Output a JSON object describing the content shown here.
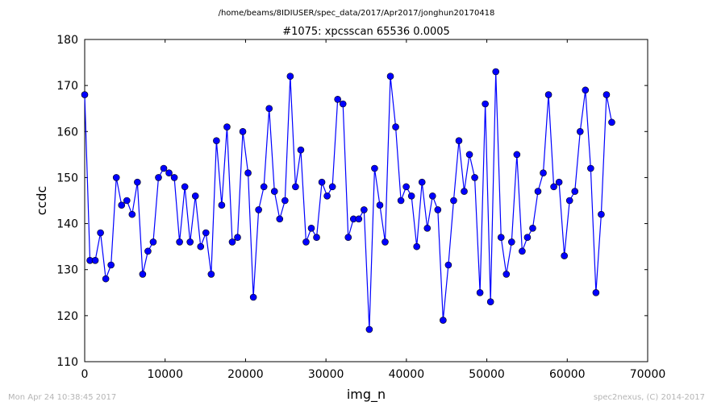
{
  "header": {
    "path": "/home/beams/8IDIUSER/spec_data/2017/Apr2017/jonghun20170418"
  },
  "footer": {
    "timestamp": "Mon Apr 24 10:38:45 2017",
    "credit": "spec2nexus, (C) 2014-2017"
  },
  "chart_data": {
    "type": "line",
    "title": "#1075: xpcsscan 65536 0.0005",
    "xlabel": "img_n",
    "ylabel": "ccdc",
    "xlim": [
      0,
      70000
    ],
    "ylim": [
      110,
      180
    ],
    "xticks": [
      0,
      10000,
      20000,
      30000,
      40000,
      50000,
      60000,
      70000
    ],
    "yticks": [
      110,
      120,
      130,
      140,
      150,
      160,
      170,
      180
    ],
    "grid": false,
    "legend": "none",
    "markers": true,
    "line_color": "#0000ff",
    "marker_color": "#0000ff",
    "series": [
      {
        "x": [
          0,
          655,
          1311,
          1966,
          2621,
          3277,
          3932,
          4588,
          5243,
          5898,
          6554,
          7209,
          7864,
          8520,
          9175,
          9830,
          10486,
          11141,
          11796,
          12452,
          13107,
          13763,
          14418,
          15073,
          15729,
          16384,
          17039,
          17695,
          18350,
          19005,
          19661,
          20316,
          20972,
          21627,
          22282,
          22938,
          23593,
          24248,
          24904,
          25559,
          26214,
          26870,
          27525,
          28180,
          28836,
          29491,
          30147,
          30802,
          31457,
          32113,
          32768,
          33423,
          34079,
          34734,
          35389,
          36045,
          36700,
          37356,
          38011,
          38666,
          39322,
          39977,
          40632,
          41288,
          41943,
          42598,
          43254,
          43909,
          44564,
          45220,
          45875,
          46531,
          47186,
          47841,
          48497,
          49152,
          49807,
          50463,
          51118,
          51773,
          52429,
          53084,
          53740,
          54395,
          55050,
          55706,
          56361,
          57016,
          57672,
          58327,
          58982,
          59638,
          60293,
          60948,
          61604,
          62259,
          62915,
          63570,
          64225,
          64881,
          65536
        ],
        "y": [
          168,
          132,
          132,
          138,
          128,
          131,
          150,
          144,
          145,
          142,
          149,
          129,
          134,
          136,
          150,
          152,
          151,
          150,
          136,
          148,
          136,
          146,
          135,
          138,
          129,
          158,
          144,
          161,
          136,
          137,
          160,
          151,
          124,
          143,
          148,
          165,
          147,
          141,
          145,
          172,
          148,
          156,
          136,
          139,
          137,
          149,
          146,
          148,
          167,
          166,
          137,
          141,
          141,
          143,
          117,
          152,
          144,
          136,
          172,
          161,
          145,
          148,
          146,
          135,
          149,
          139,
          146,
          143,
          119,
          131,
          145,
          158,
          147,
          155,
          150,
          125,
          166,
          123,
          173,
          137,
          129,
          136,
          155,
          134,
          137,
          139,
          147,
          151,
          168,
          148,
          149,
          133,
          145,
          147,
          160,
          169,
          152,
          125,
          142,
          168,
          162
        ]
      }
    ]
  }
}
